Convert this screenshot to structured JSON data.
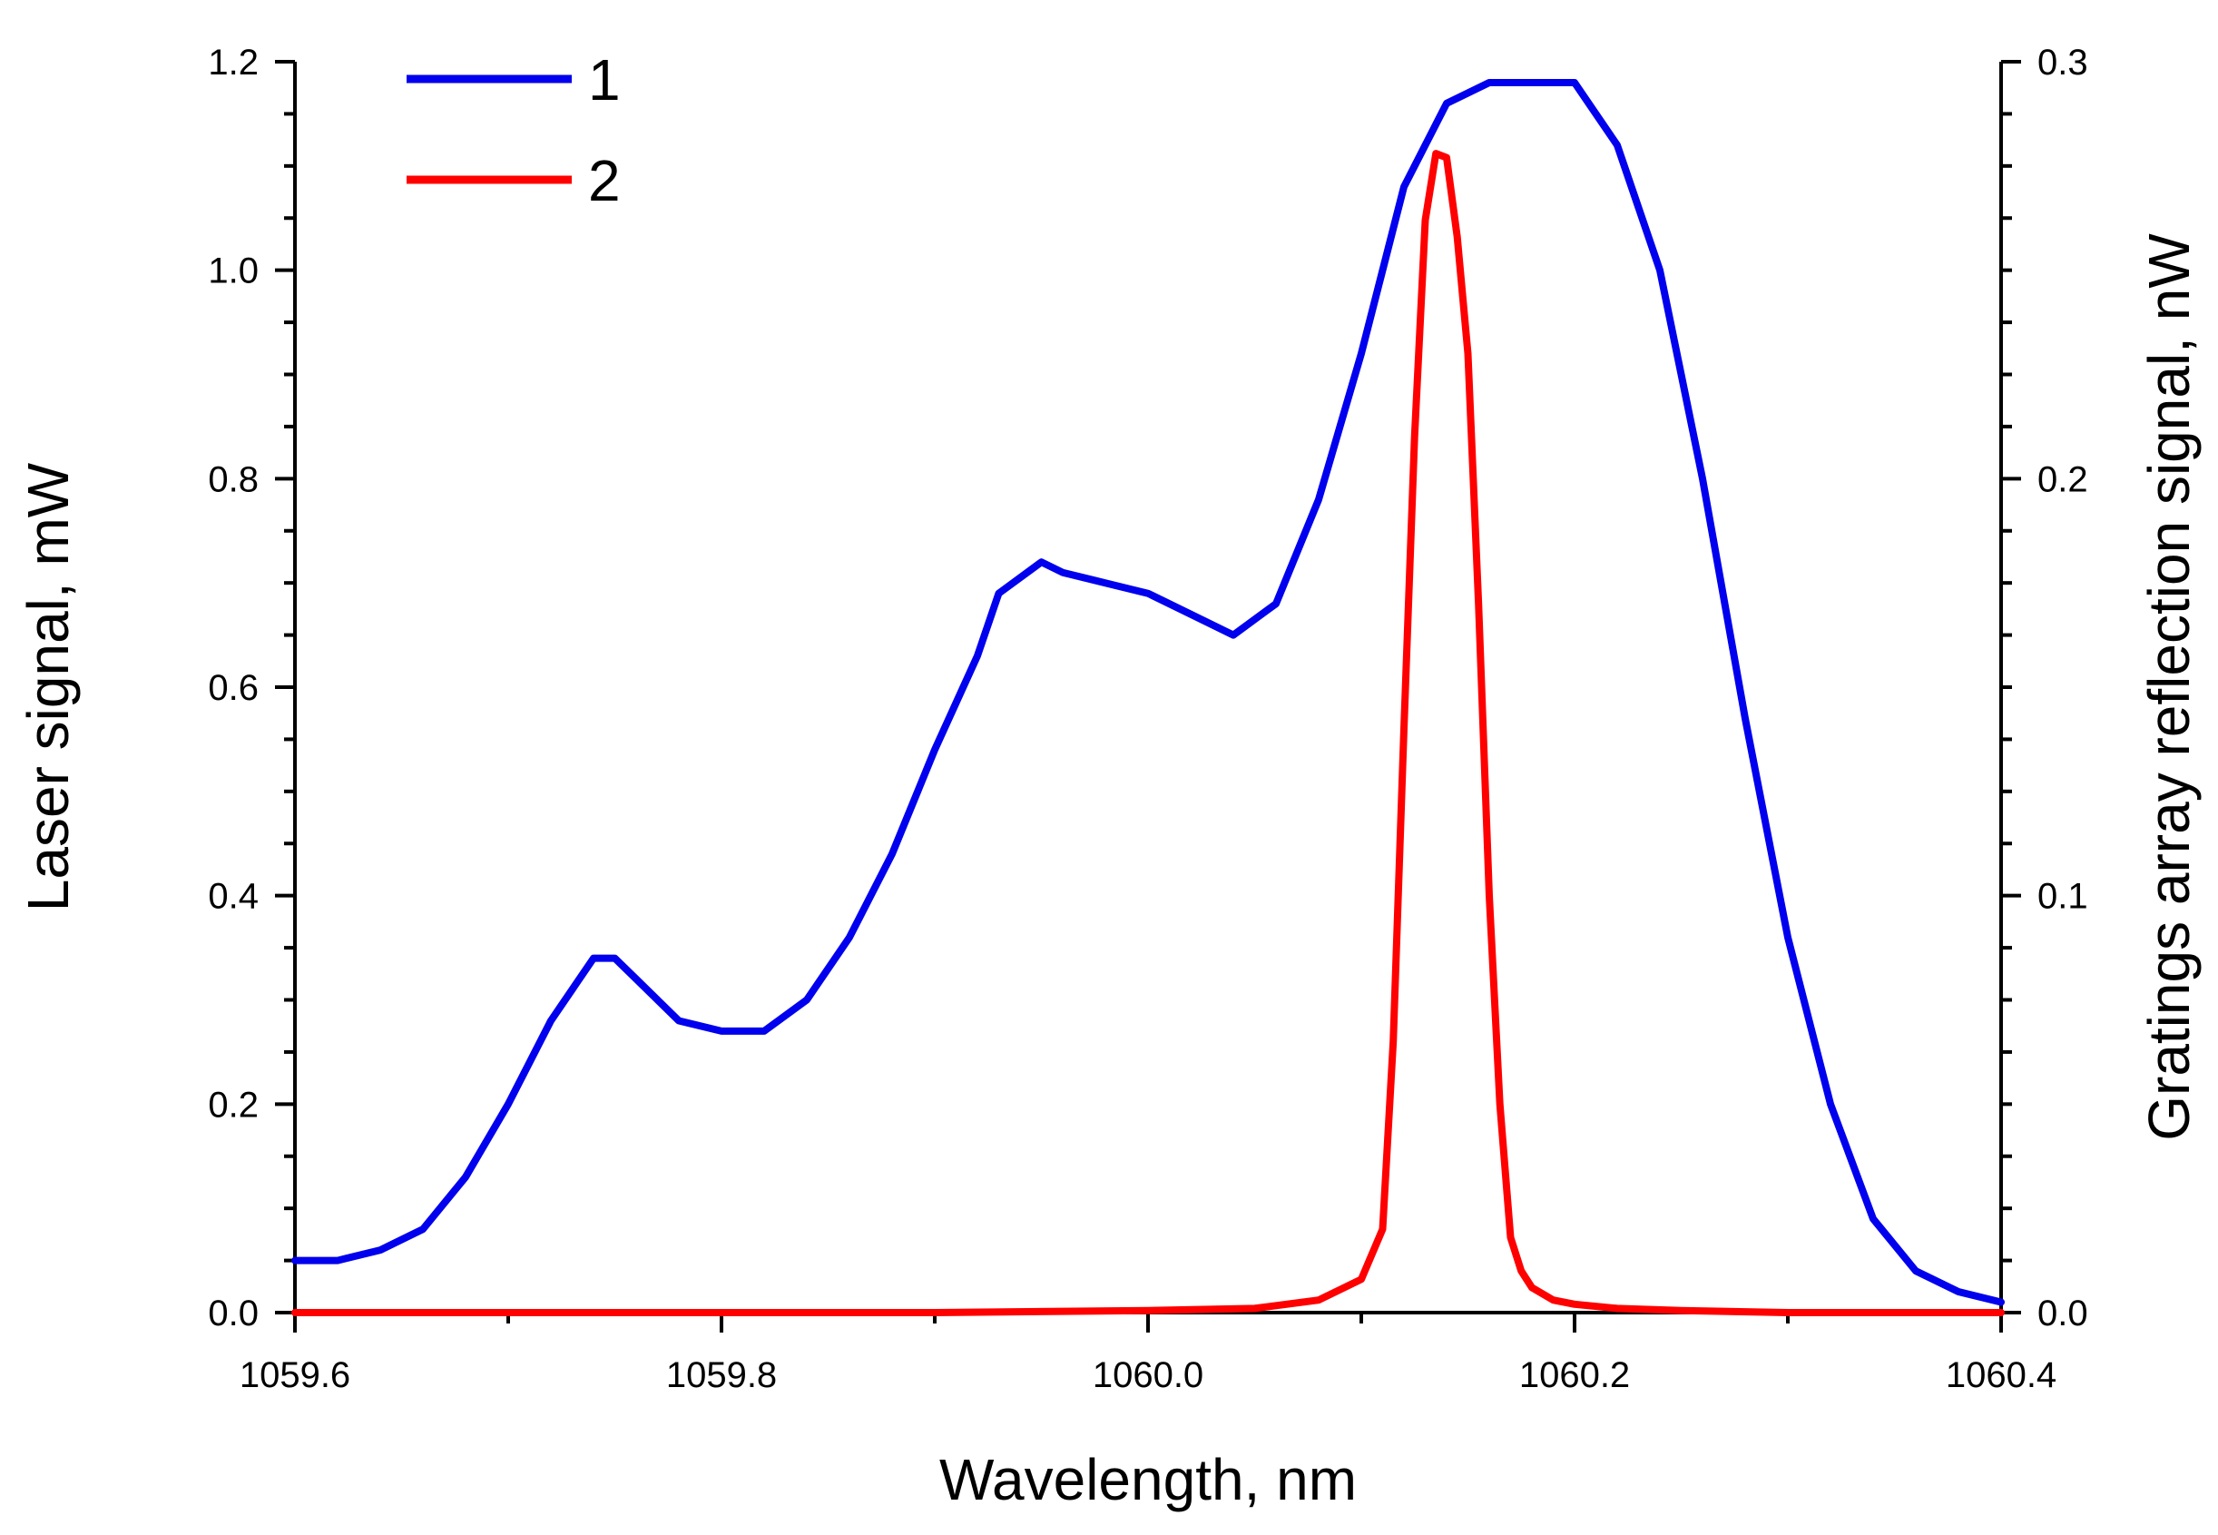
{
  "chart_data": {
    "type": "line",
    "xlabel": "Wavelength, nm",
    "ylabel_left": "Laser signal, mW",
    "ylabel_right": "Gratings array reflection signal, nW",
    "xlim": [
      1059.6,
      1060.4
    ],
    "ylim_left": [
      0,
      1.2
    ],
    "ylim_right": [
      0,
      0.3
    ],
    "x_ticks": [
      "1059.6",
      "1059.8",
      "1060.0",
      "1060.2",
      "1060.4"
    ],
    "y_ticks_left": [
      "0.0",
      "0.2",
      "0.4",
      "0.6",
      "0.8",
      "1.0",
      "1.2"
    ],
    "y_ticks_right": [
      "0.0",
      "0.1",
      "0.2",
      "0.3"
    ],
    "legend_position": "top-left",
    "grid": false,
    "series": [
      {
        "name": "1",
        "axis": "left",
        "color": "#0000ee",
        "x": [
          1059.6,
          1059.62,
          1059.64,
          1059.66,
          1059.68,
          1059.7,
          1059.72,
          1059.74,
          1059.75,
          1059.76,
          1059.78,
          1059.8,
          1059.82,
          1059.84,
          1059.86,
          1059.88,
          1059.9,
          1059.92,
          1059.93,
          1059.95,
          1059.96,
          1059.98,
          1060.0,
          1060.02,
          1060.04,
          1060.06,
          1060.08,
          1060.1,
          1060.12,
          1060.14,
          1060.16,
          1060.18,
          1060.2,
          1060.22,
          1060.24,
          1060.26,
          1060.28,
          1060.3,
          1060.32,
          1060.34,
          1060.36,
          1060.38,
          1060.4
        ],
        "values": [
          0.05,
          0.05,
          0.06,
          0.08,
          0.13,
          0.2,
          0.28,
          0.34,
          0.34,
          0.32,
          0.28,
          0.27,
          0.27,
          0.3,
          0.36,
          0.44,
          0.54,
          0.63,
          0.69,
          0.72,
          0.71,
          0.7,
          0.69,
          0.67,
          0.65,
          0.68,
          0.78,
          0.92,
          1.08,
          1.16,
          1.18,
          1.18,
          1.18,
          1.12,
          1.0,
          0.8,
          0.57,
          0.36,
          0.2,
          0.09,
          0.04,
          0.02,
          0.01
        ]
      },
      {
        "name": "2",
        "axis": "right",
        "color": "#ff0000",
        "x": [
          1059.6,
          1059.9,
          1060.0,
          1060.05,
          1060.08,
          1060.1,
          1060.11,
          1060.115,
          1060.12,
          1060.125,
          1060.13,
          1060.135,
          1060.14,
          1060.145,
          1060.15,
          1060.155,
          1060.16,
          1060.165,
          1060.17,
          1060.175,
          1060.18,
          1060.19,
          1060.2,
          1060.22,
          1060.25,
          1060.3,
          1060.4
        ],
        "values": [
          0.0,
          0.0,
          0.0005,
          0.001,
          0.003,
          0.008,
          0.02,
          0.065,
          0.14,
          0.21,
          0.262,
          0.278,
          0.277,
          0.258,
          0.23,
          0.17,
          0.1,
          0.05,
          0.018,
          0.01,
          0.006,
          0.003,
          0.002,
          0.001,
          0.0005,
          0.0,
          0.0
        ]
      }
    ]
  }
}
